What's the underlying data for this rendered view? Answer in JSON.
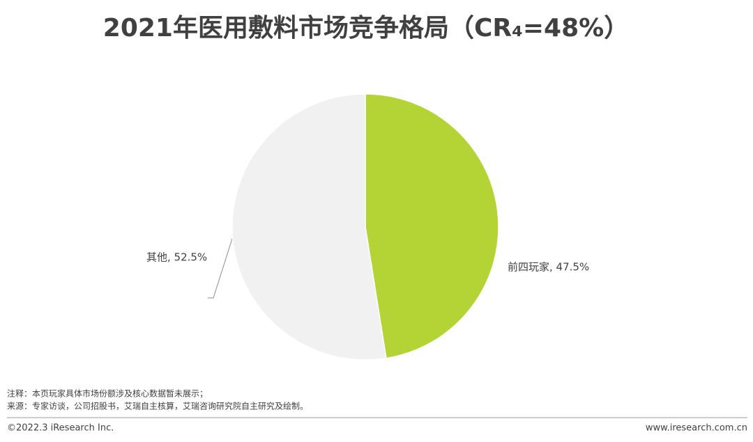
{
  "chart_data": {
    "type": "pie",
    "title": "2021年医用敷料市场竞争格局（CR₄=48%）",
    "values": [
      47.5,
      52.5
    ],
    "value_labels": [
      "前四玩家, 47.5%",
      "其他, 52.5%"
    ],
    "colors": [
      "#b4d334",
      "#f1f1f1"
    ]
  },
  "notes": [
    "注释：本页玩家具体市场份额涉及核心数据暂未展示；",
    "来源：专家访谈，公司招股书，艾瑞自主核算，艾瑞咨询研究院自主研究及绘制。"
  ],
  "footer": {
    "left": "©2022.3 iResearch Inc.",
    "right": "www.iresearch.com.cn"
  }
}
